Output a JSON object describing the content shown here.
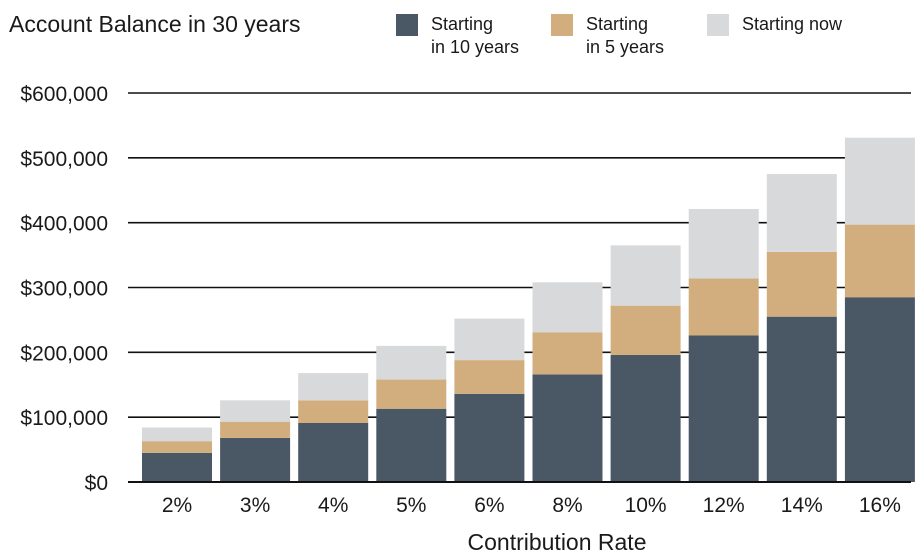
{
  "chart_data": {
    "type": "bar",
    "stacked": true,
    "title": "Account Balance in 30 years",
    "xlabel": "Contribution Rate",
    "ylabel": "",
    "categories": [
      "2%",
      "3%",
      "4%",
      "5%",
      "6%",
      "8%",
      "10%",
      "12%",
      "14%",
      "16%"
    ],
    "ylim": [
      0,
      600000
    ],
    "yticks": [
      {
        "value": 0,
        "label": "$0"
      },
      {
        "value": 100000,
        "label": "$100,000"
      },
      {
        "value": 200000,
        "label": "$200,000"
      },
      {
        "value": 300000,
        "label": "$300,000"
      },
      {
        "value": 400000,
        "label": "$400,000"
      },
      {
        "value": 500000,
        "label": "$500,000"
      },
      {
        "value": 600000,
        "label": "$600,000"
      }
    ],
    "grid": true,
    "legend_position": "top",
    "series": [
      {
        "name": "Starting\nin 10 years",
        "color": "#4a5866",
        "values": [
          45000,
          68000,
          91000,
          113000,
          136000,
          166000,
          196000,
          226000,
          255000,
          285000
        ]
      },
      {
        "name": "Starting\nin 5 years",
        "color": "#d2ae7e",
        "values": [
          18000,
          25000,
          35000,
          45000,
          52000,
          65000,
          76000,
          88000,
          100000,
          112000
        ]
      },
      {
        "name": "Starting now",
        "color": "#d8d9db",
        "values": [
          21000,
          33000,
          42000,
          52000,
          64000,
          77000,
          93000,
          107000,
          120000,
          134000
        ]
      }
    ]
  }
}
